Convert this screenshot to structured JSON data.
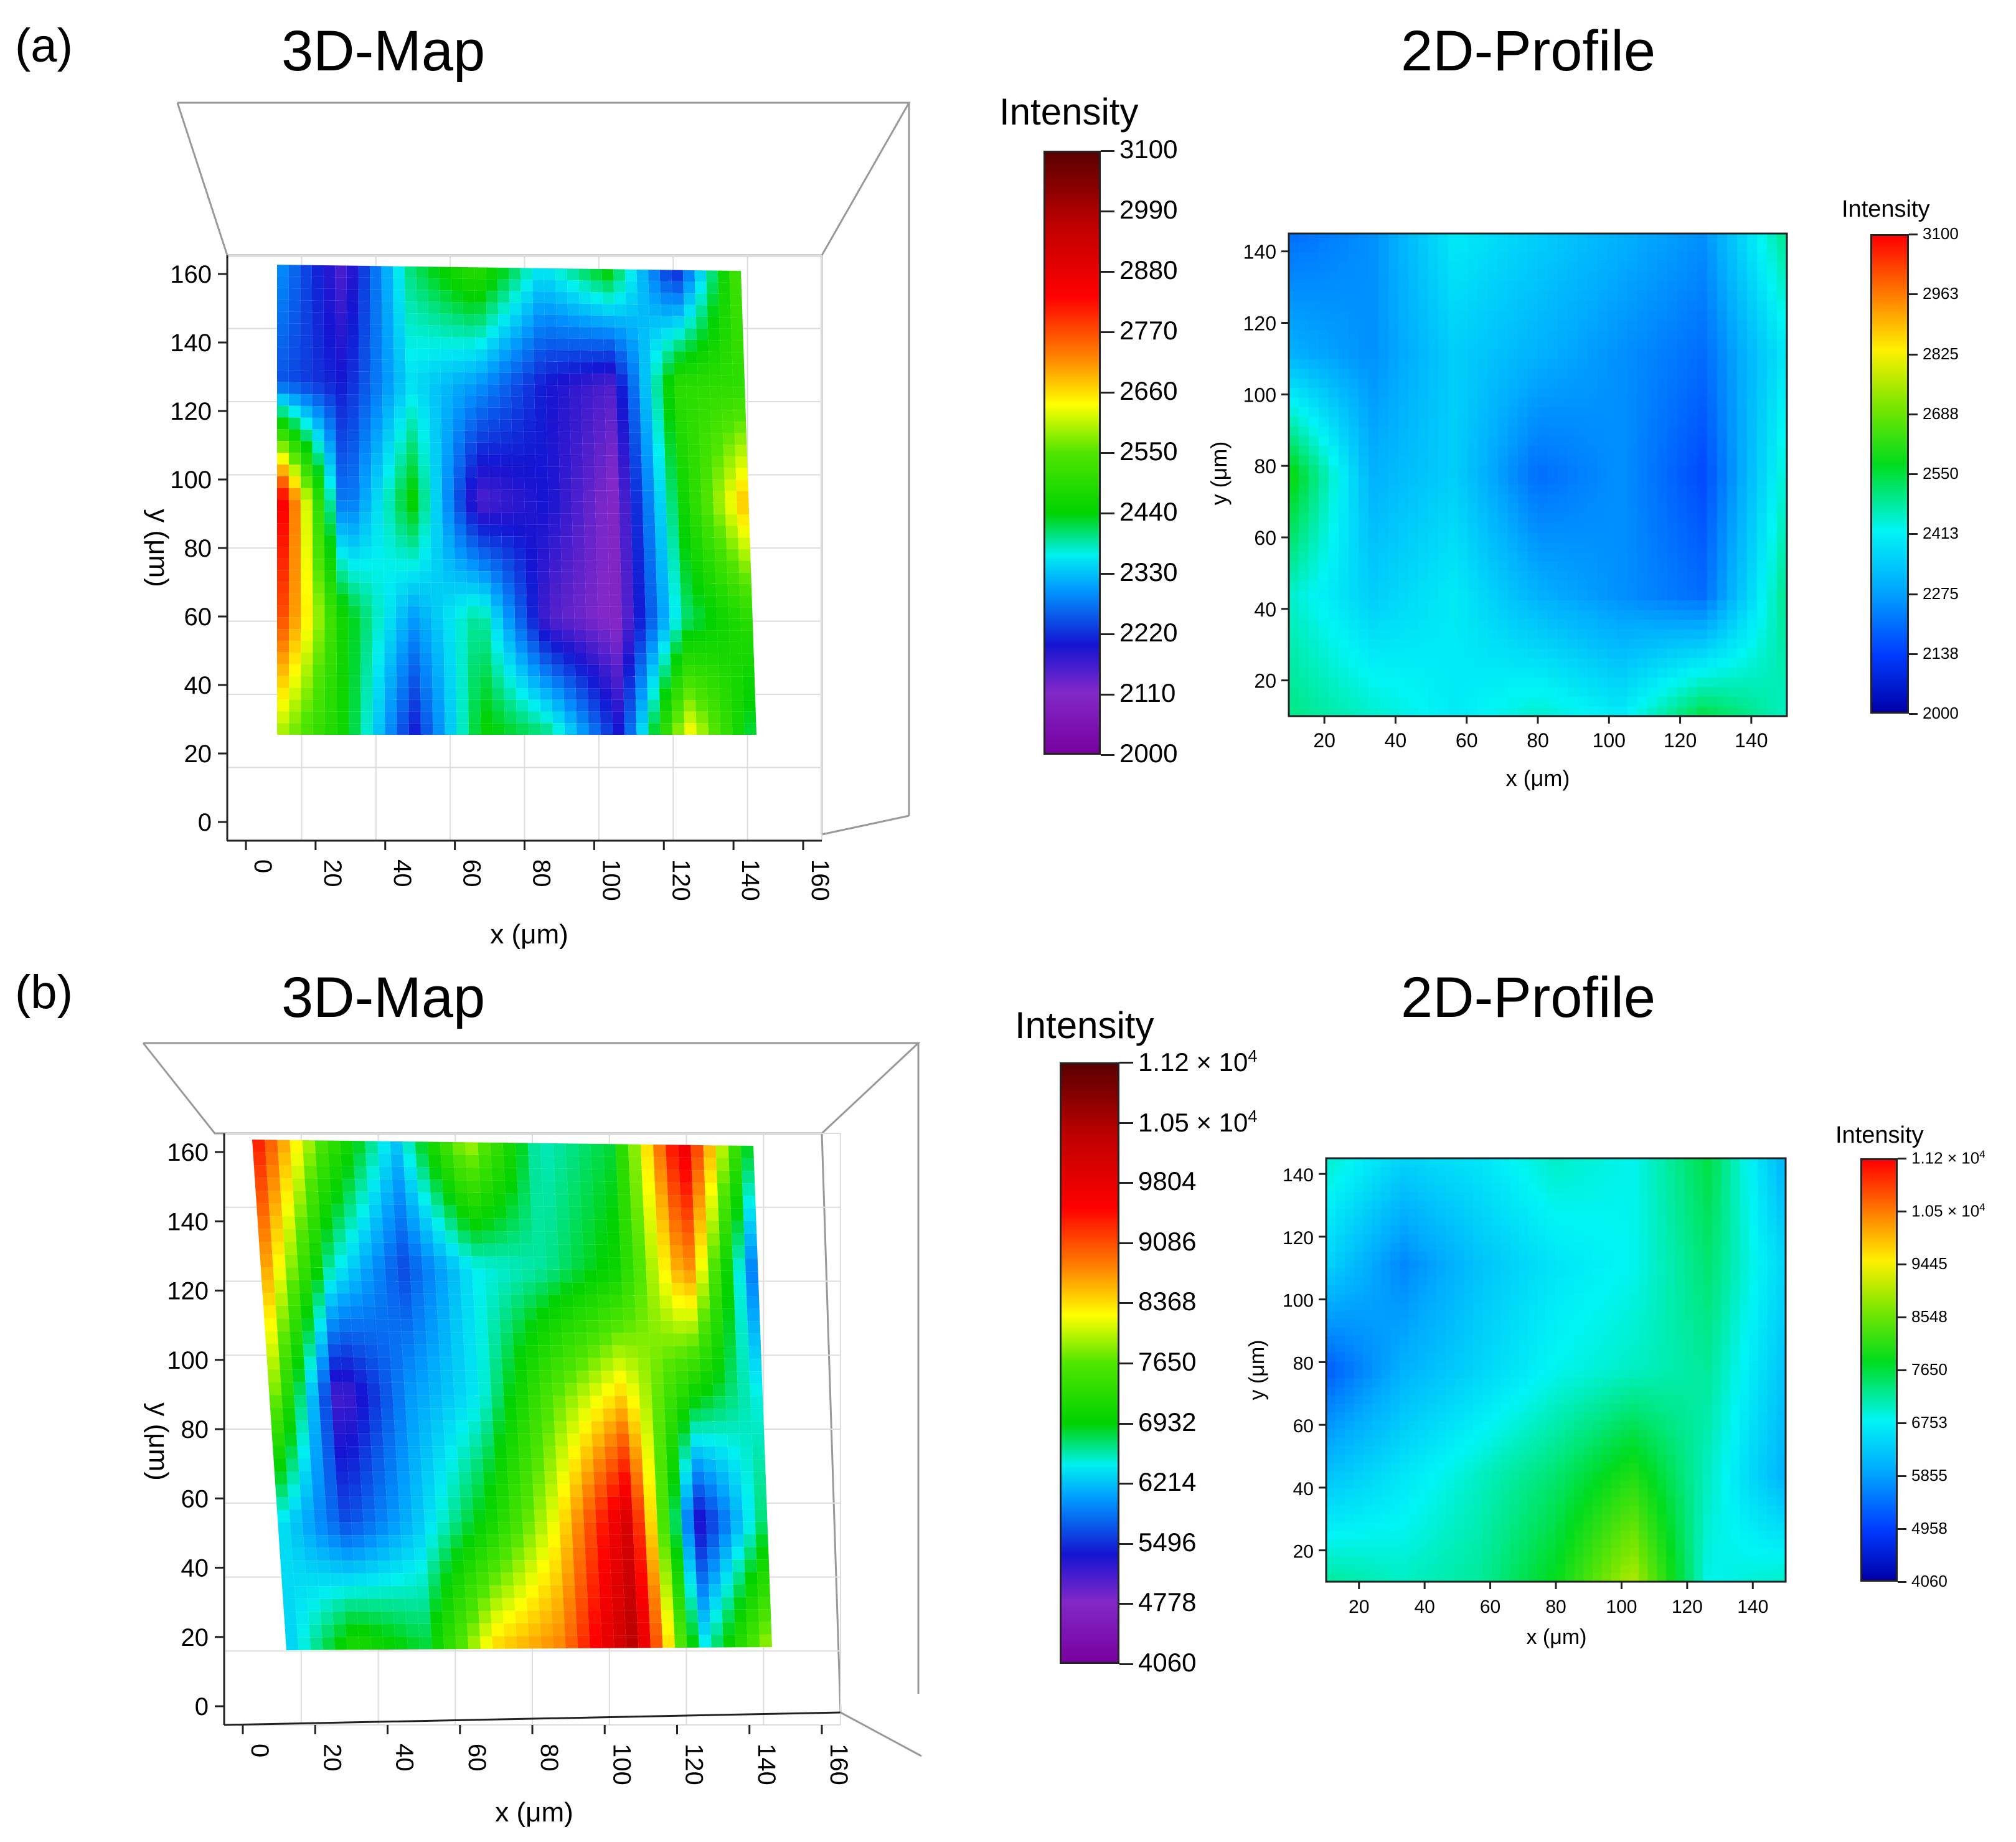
{
  "figure": {
    "panels": [
      {
        "label": "(a)",
        "map_title": "3D-Map",
        "profile_title": "2D-Profile",
        "map_colorbar": {
          "title": "Intensity",
          "ticks": [
            "3100",
            "2990",
            "2880",
            "2770",
            "2660",
            "2550",
            "2440",
            "2330",
            "2220",
            "2110",
            "2000"
          ]
        },
        "profile_colorbar": {
          "title": "Intensity",
          "ticks": [
            "3100",
            "2963",
            "2825",
            "2688",
            "2550",
            "2413",
            "2275",
            "2138",
            "2000"
          ]
        },
        "map_axes": {
          "xlabel": "x (μm)",
          "ylabel": "y (μm)",
          "xticks": [
            "0",
            "20",
            "40",
            "60",
            "80",
            "100",
            "120",
            "140",
            "160"
          ],
          "yticks": [
            "160",
            "140",
            "120",
            "100",
            "80",
            "60",
            "40",
            "20",
            "0"
          ]
        },
        "profile_axes": {
          "xlabel": "x (μm)",
          "ylabel": "y (μm)",
          "xticks": [
            "20",
            "40",
            "60",
            "80",
            "100",
            "120",
            "140"
          ],
          "yticks": [
            "140",
            "120",
            "100",
            "80",
            "60",
            "40",
            "20"
          ]
        }
      },
      {
        "label": "(b)",
        "map_title": "3D-Map",
        "profile_title": "2D-Profile",
        "map_colorbar": {
          "title": "Intensity",
          "ticks": [
            "1.12 × 10",
            "1.05 × 10",
            "9804",
            "9086",
            "8368",
            "7650",
            "6932",
            "6214",
            "5496",
            "4778",
            "4060"
          ],
          "exp": "4"
        },
        "profile_colorbar": {
          "title": "Intensity",
          "ticks": [
            "1.12 × 10",
            "1.05 × 10",
            "9445",
            "8548",
            "7650",
            "6753",
            "5855",
            "4958",
            "4060"
          ],
          "exp": "4"
        },
        "map_axes": {
          "xlabel": "x (μm)",
          "ylabel": "y (μm)",
          "xticks": [
            "0",
            "20",
            "40",
            "60",
            "80",
            "100",
            "120",
            "140",
            "160"
          ],
          "yticks": [
            "160",
            "140",
            "120",
            "100",
            "80",
            "60",
            "40",
            "20",
            "0"
          ]
        },
        "profile_axes": {
          "xlabel": "x (μm)",
          "ylabel": "y (μm)",
          "xticks": [
            "20",
            "40",
            "60",
            "80",
            "100",
            "120",
            "140"
          ],
          "yticks": [
            "140",
            "120",
            "100",
            "80",
            "60",
            "40",
            "20"
          ]
        }
      }
    ]
  },
  "chart_data": [
    {
      "type": "heatmap",
      "title": "3D-Map (a)",
      "xlabel": "x (μm)",
      "ylabel": "y (μm)",
      "xlim": [
        0,
        160
      ],
      "ylim": [
        0,
        160
      ],
      "colorbar_range": [
        2000,
        3100
      ],
      "colorbar_ticks": [
        2000,
        2110,
        2220,
        2330,
        2440,
        2550,
        2660,
        2770,
        2880,
        2990,
        3100
      ],
      "x": [
        10,
        30,
        50,
        70,
        90,
        110,
        130,
        150
      ],
      "y": [
        140,
        110,
        80,
        50,
        20
      ],
      "z": [
        [
          2300,
          2150,
          2400,
          2500,
          2350,
          2450,
          2200,
          2550
        ],
        [
          2250,
          2200,
          2350,
          2300,
          2200,
          2150,
          2500,
          2500
        ],
        [
          2900,
          2250,
          2450,
          2150,
          2200,
          2100,
          2450,
          2700
        ],
        [
          2800,
          2450,
          2300,
          2400,
          2150,
          2100,
          2400,
          2500
        ],
        [
          2600,
          2450,
          2200,
          2450,
          2400,
          2200,
          2650,
          2400
        ]
      ]
    },
    {
      "type": "heatmap",
      "title": "2D-Profile (a)",
      "xlabel": "x (μm)",
      "ylabel": "y (μm)",
      "xlim": [
        10,
        150
      ],
      "ylim": [
        10,
        145
      ],
      "colorbar_range": [
        2000,
        3100
      ],
      "colorbar_ticks": [
        2000,
        2138,
        2275,
        2413,
        2550,
        2688,
        2825,
        2963,
        3100
      ],
      "x": [
        20,
        40,
        60,
        80,
        100,
        120,
        140
      ],
      "y": [
        130,
        100,
        70,
        40,
        20
      ],
      "z": [
        [
          2200,
          2250,
          2400,
          2350,
          2300,
          2250,
          2500
        ],
        [
          2300,
          2250,
          2350,
          2300,
          2250,
          2200,
          2400
        ],
        [
          2600,
          2300,
          2350,
          2200,
          2250,
          2150,
          2450
        ],
        [
          2450,
          2350,
          2400,
          2300,
          2250,
          2200,
          2500
        ],
        [
          2500,
          2450,
          2400,
          2450,
          2400,
          2550,
          2450
        ]
      ]
    },
    {
      "type": "heatmap",
      "title": "3D-Map (b)",
      "xlabel": "x (μm)",
      "ylabel": "y (μm)",
      "xlim": [
        0,
        160
      ],
      "ylim": [
        0,
        160
      ],
      "colorbar_range": [
        4060,
        11200
      ],
      "colorbar_ticks": [
        4060,
        4778,
        5496,
        6214,
        6932,
        7650,
        8368,
        9086,
        9804,
        10500,
        11200
      ],
      "x": [
        10,
        30,
        50,
        70,
        90,
        110,
        130,
        150
      ],
      "y": [
        140,
        110,
        80,
        50,
        20
      ],
      "z": [
        [
          9500,
          7500,
          6200,
          8000,
          6500,
          6800,
          9800,
          6600
        ],
        [
          8800,
          6500,
          5600,
          6400,
          6600,
          7000,
          8800,
          5600
        ],
        [
          8000,
          5000,
          6000,
          6400,
          7600,
          8400,
          7000,
          6400
        ],
        [
          6400,
          5600,
          6200,
          7000,
          8200,
          10000,
          5200,
          6800
        ],
        [
          6200,
          7200,
          6800,
          8400,
          8800,
          10400,
          6400,
          8000
        ]
      ]
    },
    {
      "type": "heatmap",
      "title": "2D-Profile (b)",
      "xlabel": "x (μm)",
      "ylabel": "y (μm)",
      "xlim": [
        10,
        150
      ],
      "ylim": [
        10,
        145
      ],
      "colorbar_range": [
        4060,
        11200
      ],
      "colorbar_ticks": [
        4060,
        4958,
        5855,
        6753,
        7650,
        8548,
        9445,
        10500,
        11200
      ],
      "x": [
        20,
        40,
        60,
        80,
        100,
        120,
        140
      ],
      "y": [
        130,
        100,
        70,
        40,
        20
      ],
      "z": [
        [
          7000,
          6400,
          6600,
          7000,
          6800,
          7600,
          6000
        ],
        [
          6400,
          5600,
          6200,
          6600,
          6800,
          7400,
          6400
        ],
        [
          5200,
          6000,
          6400,
          6800,
          7000,
          7200,
          6200
        ],
        [
          6200,
          6600,
          7000,
          7400,
          8000,
          7000,
          6000
        ],
        [
          7200,
          7000,
          7200,
          7800,
          9000,
          6800,
          7000
        ]
      ]
    }
  ]
}
